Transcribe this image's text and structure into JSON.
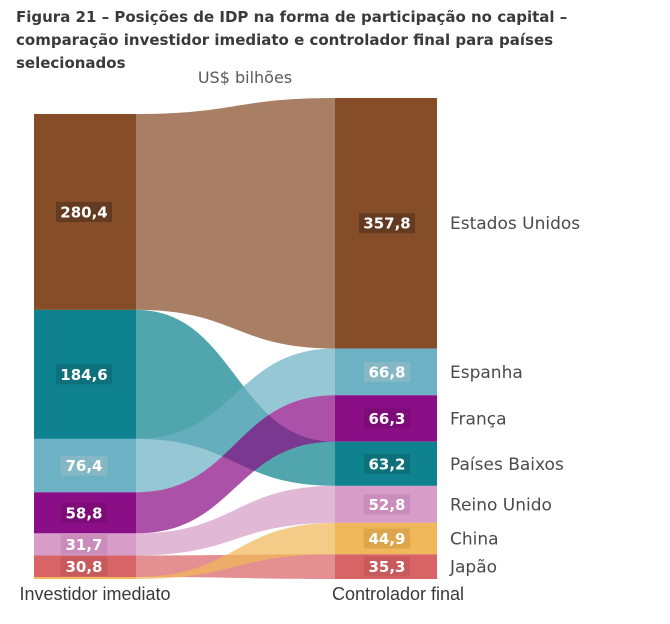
{
  "title": "Figura 21 – Posições de IDP na forma de participação no capital – comparação investidor imediato e controlador final para países selecionados",
  "chart_data": {
    "type": "sankey",
    "unit_label": "US$ bilhões",
    "left_label": "Investidor imediato",
    "right_label": "Controlador final",
    "nodes": [
      {
        "name": "Estados Unidos",
        "color": "#864d29",
        "label_fill": "#5e3720"
      },
      {
        "name": "Espanha",
        "color": "#6db2c4",
        "label_fill": "#8ab8c4"
      },
      {
        "name": "França",
        "color": "#8a0e86",
        "label_fill": "#7a0c77"
      },
      {
        "name": "Países Baixos",
        "color": "#0e838f",
        "label_fill": "#0d6e79"
      },
      {
        "name": "Reino Unido",
        "color": "#d79cc8",
        "label_fill": "#c78ab8"
      },
      {
        "name": "China",
        "color": "#f0b85a",
        "label_fill": "#d9a24a"
      },
      {
        "name": "Japão",
        "color": "#d96466",
        "label_fill": "#c4585a"
      }
    ],
    "left": [
      {
        "name": "Estados Unidos",
        "value": 280.4,
        "label": "280,4"
      },
      {
        "name": "Países Baixos",
        "value": 184.6,
        "label": "184,6"
      },
      {
        "name": "Espanha",
        "value": 76.4,
        "label": "76,4"
      },
      {
        "name": "França",
        "value": 58.8,
        "label": "58,8"
      },
      {
        "name": "Reino Unido",
        "value": 31.7,
        "label": "31,7"
      },
      {
        "name": "Japão",
        "value": 30.8,
        "label": "30,8"
      },
      {
        "name": "China",
        "value": 2.8,
        "label": ""
      }
    ],
    "right": [
      {
        "name": "Estados Unidos",
        "value": 357.8,
        "label": "357,8"
      },
      {
        "name": "Espanha",
        "value": 66.8,
        "label": "66,8"
      },
      {
        "name": "França",
        "value": 66.3,
        "label": "66,3"
      },
      {
        "name": "Países Baixos",
        "value": 63.2,
        "label": "63,2"
      },
      {
        "name": "Reino Unido",
        "value": 52.8,
        "label": "52,8"
      },
      {
        "name": "China",
        "value": 44.9,
        "label": "44,9"
      },
      {
        "name": "Japão",
        "value": 35.3,
        "label": "35,3"
      }
    ]
  }
}
